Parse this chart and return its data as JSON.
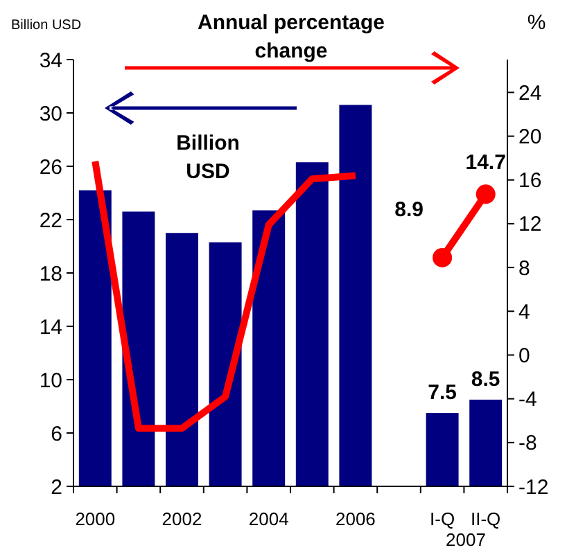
{
  "chart_data": {
    "type": "bar",
    "ylabel": "Billion USD",
    "y2label": "%",
    "categories": [
      "2000",
      null,
      "2002",
      null,
      "2004",
      null,
      "2006",
      null,
      "I-Q",
      "II-Q"
    ],
    "series": [
      {
        "color": "#000080",
        "values": [
          24.2,
          22.6,
          21.0,
          20.3,
          22.7,
          26.3,
          30.6,
          null,
          7.5,
          8.5
        ],
        "value_labels": [
          null,
          null,
          null,
          null,
          null,
          null,
          null,
          null,
          "7.5",
          "8.5"
        ]
      },
      {
        "type": "line",
        "axis": "y2",
        "color": "#ff0000",
        "marker": "none",
        "values": [
          17.7,
          -6.7,
          -6.7,
          -3.8,
          11.9,
          16.1,
          16.4,
          null,
          null,
          null
        ]
      },
      {
        "type": "line",
        "axis": "y2",
        "color": "#ff0000",
        "marker": "circle",
        "values": [
          null,
          null,
          null,
          null,
          null,
          null,
          null,
          null,
          8.9,
          14.7
        ],
        "value_labels": [
          null,
          null,
          null,
          null,
          null,
          null,
          null,
          null,
          "8.9",
          "14.7"
        ]
      }
    ],
    "ylim": [
      2,
      34
    ],
    "yticks": [
      2,
      6,
      10,
      14,
      18,
      22,
      26,
      30,
      34
    ],
    "y2lim": [
      -12,
      27
    ],
    "y2ticks": [
      -12,
      -8,
      -4,
      0,
      4,
      8,
      12,
      16,
      20,
      24
    ],
    "annotations": [
      "Annual percentage change",
      "Billion USD",
      "2007"
    ],
    "grid": false
  }
}
